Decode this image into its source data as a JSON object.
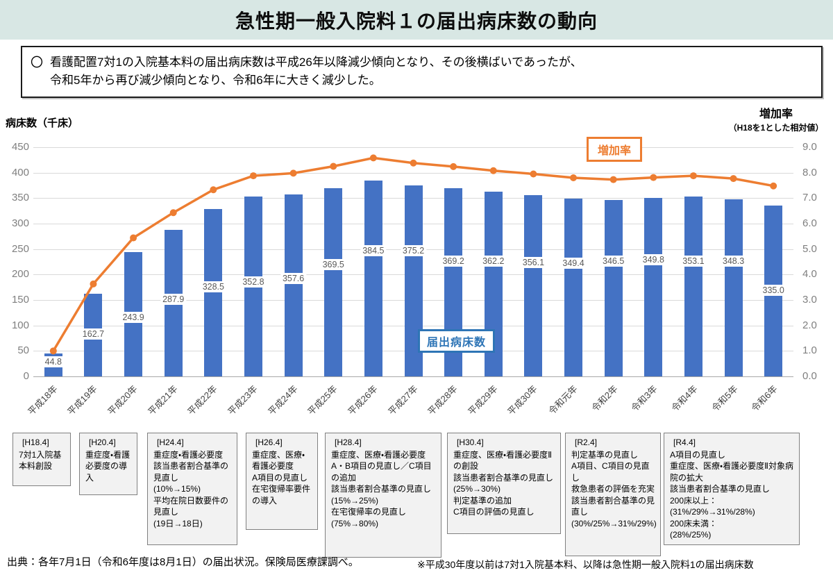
{
  "header": {
    "title": "急性期一般入院料１の届出病床数の動向"
  },
  "summary": {
    "bullet": "〇",
    "line1": "看護配置7対1の入院基本料の届出病床数は平成26年以降減少傾向となり、その後横ばいであったが、",
    "line2": "令和5年から再び減少傾向となり、令和6年に大きく減少した。"
  },
  "chart_data": {
    "type": "bar",
    "combo": "bar+line",
    "categories": [
      "平成18年",
      "平成19年",
      "平成20年",
      "平成21年",
      "平成22年",
      "平成23年",
      "平成24年",
      "平成25年",
      "平成26年",
      "平成27年",
      "平成28年",
      "平成29年",
      "平成30年",
      "令和元年",
      "令和2年",
      "令和3年",
      "令和4年",
      "令和5年",
      "令和6年"
    ],
    "series": [
      {
        "name": "届出病床数",
        "type": "bar",
        "axis": "left",
        "color": "#4472C4",
        "values": [
          44.8,
          162.7,
          243.9,
          287.9,
          328.5,
          352.8,
          357.6,
          369.5,
          384.5,
          375.2,
          369.2,
          362.2,
          356.1,
          349.4,
          346.5,
          349.8,
          353.1,
          348.3,
          335.0
        ]
      },
      {
        "name": "増加率",
        "type": "line",
        "axis": "right",
        "color": "#ED7D31",
        "values": [
          1.0,
          3.63,
          5.44,
          6.43,
          7.33,
          7.88,
          7.98,
          8.25,
          8.58,
          8.38,
          8.24,
          8.08,
          7.95,
          7.8,
          7.73,
          7.81,
          7.88,
          7.77,
          7.48
        ]
      }
    ],
    "left_axis": {
      "title": "病床数（千床）",
      "min": 0,
      "max": 450,
      "step": 50
    },
    "right_axis": {
      "title": "増加率",
      "subtitle": "（H18を1とした相対値）",
      "min": 0.0,
      "max": 9.0,
      "step": 1.0
    },
    "legend": {
      "bar_label": "届出病床数",
      "line_label": "増加率"
    },
    "grid": "horizontal",
    "bar_label_positions": [
      30,
      84,
      117,
      153,
      177,
      187,
      194,
      221,
      248,
      248,
      228,
      228,
      225,
      224,
      228,
      231,
      228,
      228,
      170
    ]
  },
  "annotations": [
    {
      "title": "[H18.4]",
      "body": "7対1入院基本料創設"
    },
    {
      "title": "[H20.4]",
      "body": "重症度・看護\n必要度の導入"
    },
    {
      "title": "[H24.4]",
      "body": "重症度・看護必要度\n該当患者割合基準の見直し\n(10%→15%)\n平均在院日数要件の見直し\n(19日→18日)"
    },
    {
      "title": "[H26.4]",
      "body": "重症度、医療・看護必要度\nA項目の見直し\n在宅復帰率要件の導入"
    },
    {
      "title": "[H28.4]",
      "body": "重症度、医療・看護必要度\nA・B項目の見直し／C項目の追加\n該当患者割合基準の見直し\n(15%→25%)\n在宅復帰率の見直し\n(75%→80%)"
    },
    {
      "title": "[H30.4]",
      "body": "重症度、医療・看護必要度Ⅱの創設\n該当患者割合基準の見直し\n(25%→30%)\n判定基準の追加\nC項目の評価の見直し"
    },
    {
      "title": "[R2.4]",
      "body": "判定基準の見直し\nA項目、C項目の見直し\n救急患者の評価を充実\n該当患者割合基準の見直し\n(30%/25%→31%/29%)"
    },
    {
      "title": "[R4.4]",
      "body": "A項目の見直し\n重症度、医療・看護必要度Ⅱ対象病院の拡大\n該当患者割合基準の見直し\n200床以上：\n(31%/29%→31%/28%)\n200床未満：\n(28%/25%)"
    }
  ],
  "footnotes": {
    "source": "出典：各年7月1日（令和6年度は8月1日）の届出状況。保険局医療課調べ。",
    "note": "※平成30年度以前は7対1入院基本料、以降は急性期一般入院料1の届出病床数"
  }
}
